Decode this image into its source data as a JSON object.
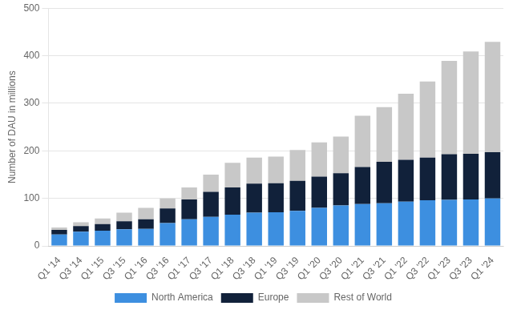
{
  "chart_data": {
    "type": "bar",
    "stacked": true,
    "ylabel": "Number of DAU in millions",
    "categories": [
      "Q1 '14",
      "Q3 '14",
      "Q1 '15",
      "Q3 '15",
      "Q1 '16",
      "Q3 '16",
      "Q1 '17",
      "Q3 '17",
      "Q1 '18",
      "Q3 '18",
      "Q1 '19",
      "Q3 '19",
      "Q1 '20",
      "Q3 '20",
      "Q1 '21",
      "Q3 '21",
      "Q1 '22",
      "Q3 '22",
      "Q1 '23",
      "Q3 '23",
      "Q1 '24"
    ],
    "series": [
      {
        "name": "North America",
        "color": "#3d8fe0",
        "values": [
          24,
          30,
          32,
          35,
          36,
          48,
          56,
          61,
          66,
          70,
          71,
          74,
          80,
          85,
          88,
          90,
          93,
          96,
          97,
          98,
          100
        ]
      },
      {
        "name": "Europe",
        "color": "#11213a",
        "values": [
          10,
          12,
          14,
          17,
          20,
          31,
          42,
          53,
          57,
          61,
          61,
          63,
          66,
          68,
          78,
          87,
          88,
          90,
          96,
          96,
          97
        ]
      },
      {
        "name": "Rest of World",
        "color": "#c8c8c8",
        "values": [
          5,
          8,
          12,
          18,
          24,
          21,
          25,
          36,
          52,
          55,
          56,
          65,
          72,
          77,
          108,
          115,
          139,
          160,
          196,
          215,
          232
        ]
      }
    ],
    "ylim": [
      0,
      500
    ],
    "yticks": [
      0,
      100,
      200,
      300,
      400,
      500
    ],
    "grid": true,
    "legend": "bottom"
  }
}
